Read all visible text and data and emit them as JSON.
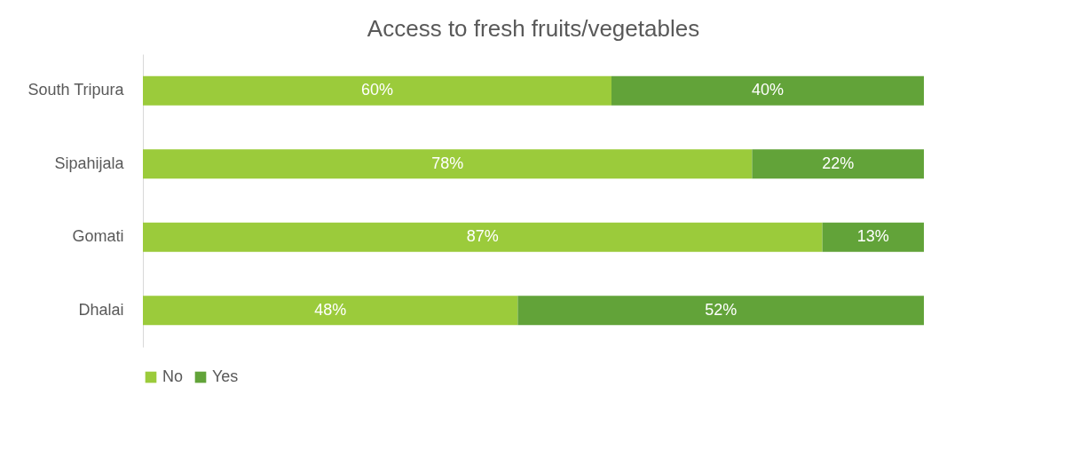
{
  "chart_data": {
    "type": "bar",
    "orientation": "horizontal",
    "stacked": true,
    "title": "Access to fresh fruits/vegetables",
    "categories": [
      "South Tripura",
      "Sipahijala",
      "Gomati",
      "Dhalai"
    ],
    "series": [
      {
        "name": "No",
        "color": "#9bcb3b",
        "values": [
          60,
          78,
          87,
          48
        ],
        "value_labels": [
          "60%",
          "78%",
          "87%",
          "48%"
        ]
      },
      {
        "name": "Yes",
        "color": "#62a339",
        "values": [
          40,
          22,
          13,
          52
        ],
        "value_labels": [
          "40%",
          "22%",
          "13%",
          "52%"
        ]
      }
    ],
    "tick_labels": "y",
    "legend": "bottom",
    "grid": false
  }
}
